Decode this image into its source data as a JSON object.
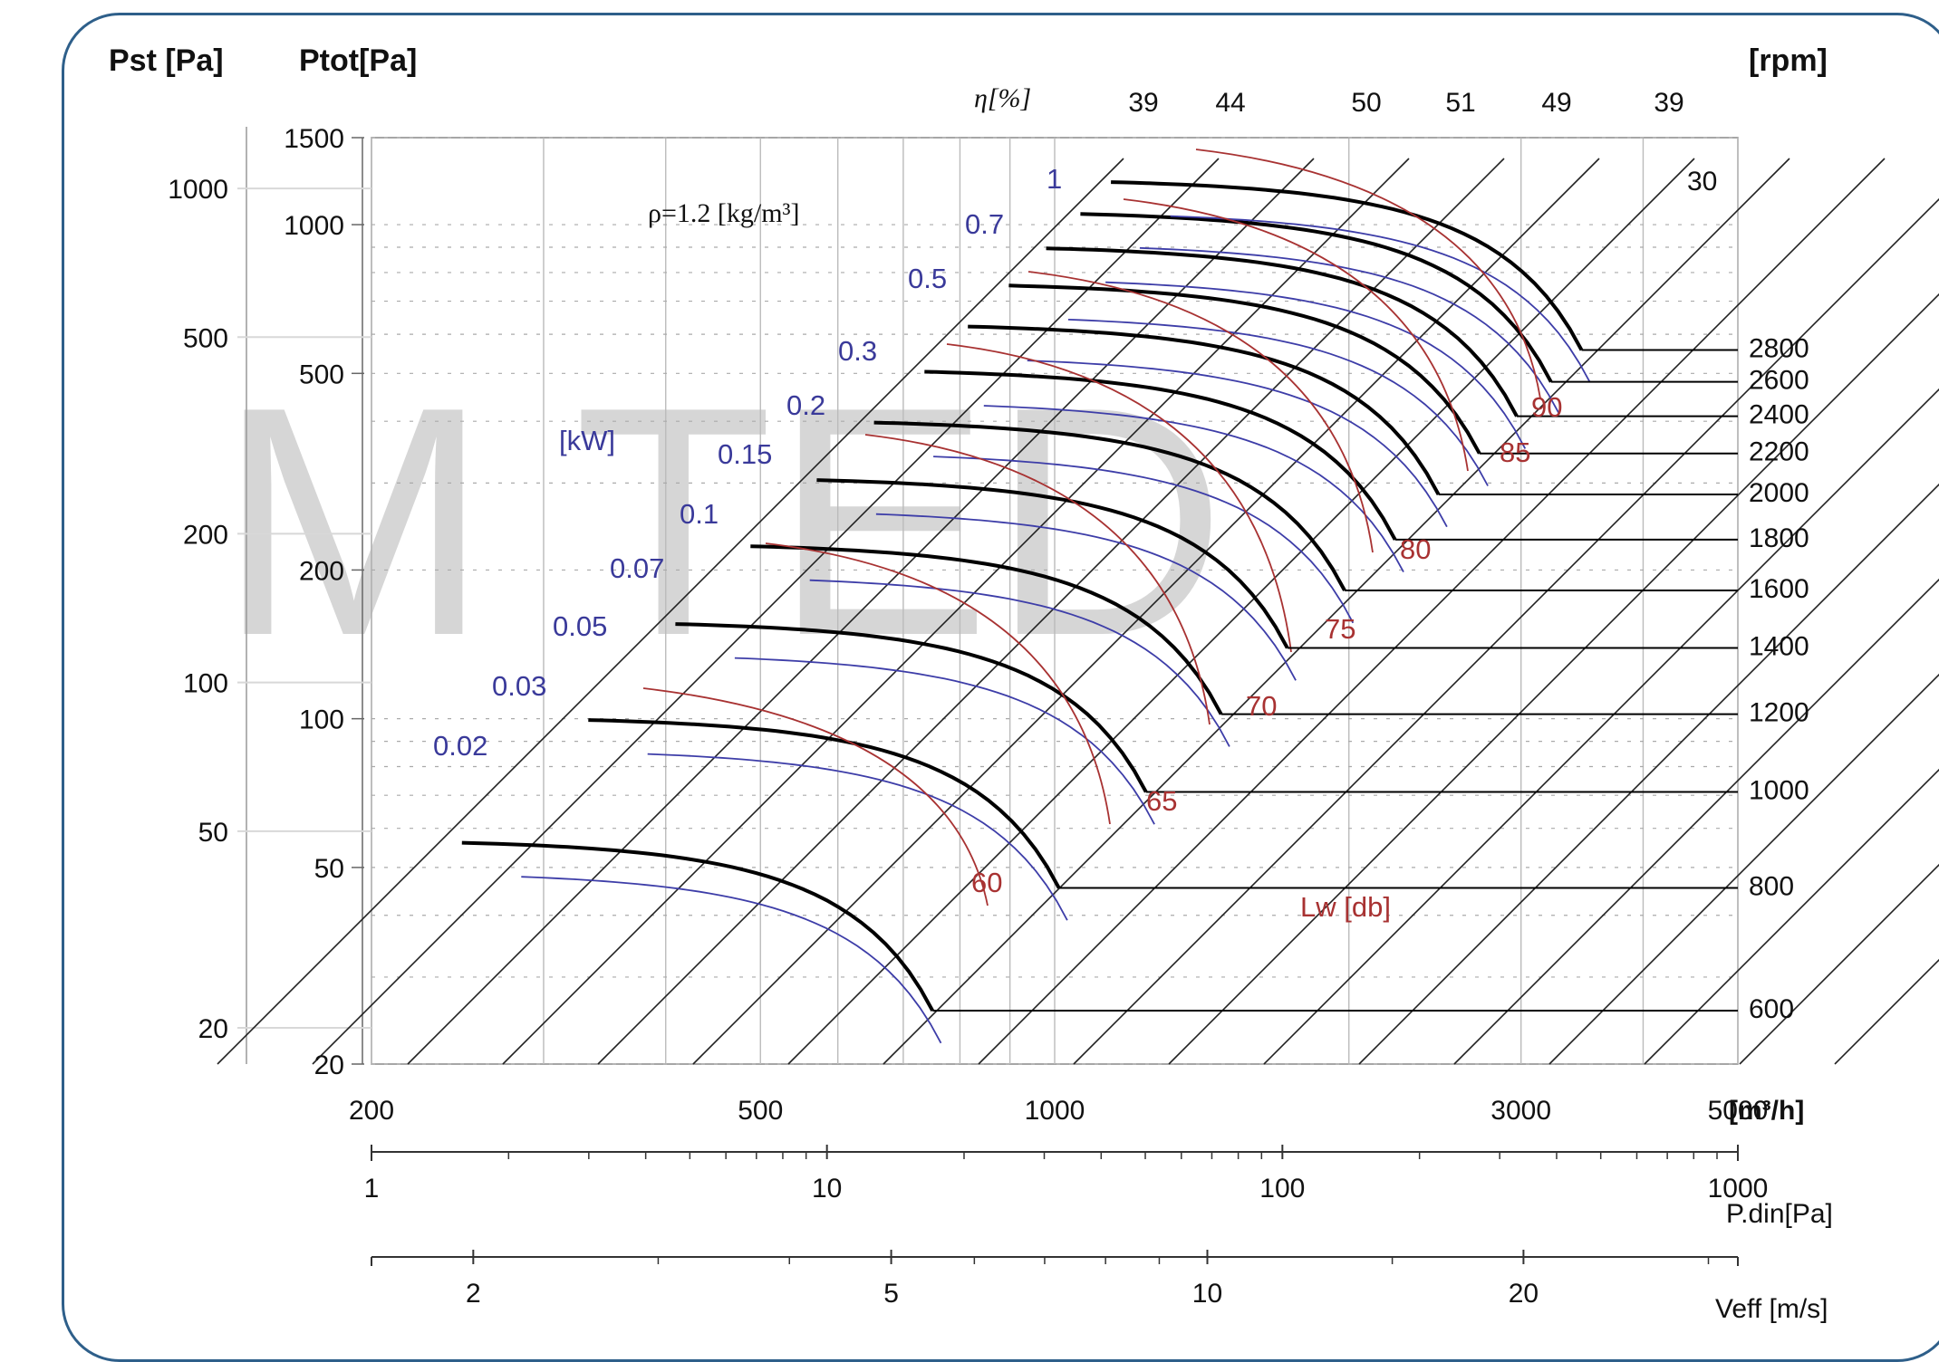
{
  "chart_data": {
    "type": "line",
    "watermark": "M  TED",
    "density_note": "ρ=1.2 [kg/m³]",
    "labels": {
      "pst": "Pst [Pa]",
      "ptot": "Ptot[Pa]",
      "rpm": "[rpm]",
      "eta": "η[%]",
      "kw": "[kW]",
      "lw": "Lw [db]",
      "flow_unit": "[m³/h]",
      "pdin": "P.din[Pa]",
      "veff": "Veff [m/s]"
    },
    "x_axis": {
      "scale": "log",
      "range": [
        200,
        5000
      ],
      "ticks": [
        "200",
        "500",
        "1000",
        "3000",
        "5000"
      ]
    },
    "y_axis": {
      "scale": "log",
      "range": [
        20,
        1500
      ],
      "ticks": [
        "1500",
        "1000",
        "500",
        "200",
        "100",
        "50",
        "20"
      ]
    },
    "pst_ticks": [
      "1000",
      "500",
      "200",
      "100",
      "50",
      "20"
    ],
    "pdin_axis": {
      "ticks": [
        "1",
        "10",
        "100",
        "1000"
      ]
    },
    "veff_axis": {
      "ticks": [
        "2",
        "5",
        "10",
        "20"
      ]
    },
    "efficiency_labels": [
      "39",
      "44",
      "50",
      "51",
      "49",
      "39"
    ],
    "top_right_label": "30",
    "rpm_curves": [
      {
        "rpm": "600",
        "ptot_max": 57,
        "q_max": 750
      },
      {
        "rpm": "800",
        "ptot_max": 101,
        "q_max": 1010
      },
      {
        "rpm": "1000",
        "ptot_max": 158,
        "q_max": 1240
      },
      {
        "rpm": "1200",
        "ptot_max": 227,
        "q_max": 1480
      },
      {
        "rpm": "1400",
        "ptot_max": 309,
        "q_max": 1730
      },
      {
        "rpm": "1600",
        "ptot_max": 404,
        "q_max": 1980
      },
      {
        "rpm": "1800",
        "ptot_max": 512,
        "q_max": 2230
      },
      {
        "rpm": "2000",
        "ptot_max": 632,
        "q_max": 2470
      },
      {
        "rpm": "2200",
        "ptot_max": 765,
        "q_max": 2720
      },
      {
        "rpm": "2400",
        "ptot_max": 910,
        "q_max": 2970
      },
      {
        "rpm": "2600",
        "ptot_max": 1068,
        "q_max": 3220
      },
      {
        "rpm": "2800",
        "ptot_max": 1239,
        "q_max": 3460
      }
    ],
    "power_labels": [
      "0.02",
      "0.03",
      "0.05",
      "0.07",
      "0.1",
      "0.15",
      "0.2",
      "0.3",
      "0.5",
      "0.7",
      "1"
    ],
    "noise_labels": [
      "60",
      "65",
      "70",
      "75",
      "80",
      "85",
      "90"
    ]
  }
}
